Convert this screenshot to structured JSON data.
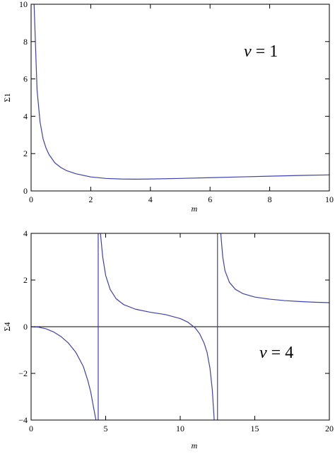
{
  "chart_data": [
    {
      "type": "line",
      "xlabel": "m",
      "ylabel": "Σ1",
      "xlim": [
        0,
        10
      ],
      "ylim": [
        0,
        10
      ],
      "xticks": [
        0,
        2,
        4,
        6,
        8,
        10
      ],
      "yticks": [
        0,
        2,
        4,
        6,
        8,
        10
      ],
      "annotation": "ν = 1",
      "series": [
        {
          "x": [
            0.1,
            0.2,
            0.3,
            0.4,
            0.5,
            0.6,
            0.8,
            1.0,
            1.2,
            1.5,
            2.0,
            2.5,
            3.0,
            3.5,
            4.0,
            5.0,
            6.0,
            7.0,
            8.0,
            9.0,
            10.0
          ],
          "y": [
            10.0,
            5.4,
            3.7,
            2.8,
            2.3,
            1.95,
            1.5,
            1.25,
            1.08,
            0.92,
            0.75,
            0.67,
            0.64,
            0.63,
            0.64,
            0.67,
            0.71,
            0.75,
            0.79,
            0.83,
            0.86
          ]
        }
      ]
    },
    {
      "type": "line",
      "xlabel": "m",
      "ylabel": "Σ4",
      "xlim": [
        0,
        20
      ],
      "ylim": [
        -4,
        4
      ],
      "xticks": [
        0,
        5,
        10,
        15,
        20
      ],
      "yticks": [
        -4,
        -2,
        0,
        2,
        4
      ],
      "annotation": "ν = 4",
      "asymptotes": [
        4.5,
        12.5
      ],
      "series": [
        {
          "x": [
            0,
            0.5,
            1.0,
            1.5,
            2.0,
            2.5,
            3.0,
            3.5,
            3.8,
            4.0,
            4.2,
            4.35
          ],
          "y": [
            0,
            -0.02,
            -0.09,
            -0.22,
            -0.42,
            -0.7,
            -1.1,
            -1.7,
            -2.3,
            -2.8,
            -3.5,
            -4.0
          ]
        },
        {
          "x": [
            4.65,
            4.8,
            5.0,
            5.3,
            5.7,
            6.2,
            7.0,
            8.0,
            9.0,
            10.0,
            10.5,
            11.0,
            11.3,
            11.6,
            11.8,
            12.0,
            12.15,
            12.28
          ],
          "y": [
            4.0,
            3.0,
            2.2,
            1.6,
            1.2,
            0.95,
            0.75,
            0.62,
            0.52,
            0.35,
            0.2,
            -0.05,
            -0.3,
            -0.7,
            -1.1,
            -1.8,
            -2.7,
            -4.0
          ]
        },
        {
          "x": [
            12.72,
            12.85,
            13.0,
            13.3,
            13.7,
            14.2,
            15.0,
            16.0,
            17.0,
            18.0,
            19.0,
            20.0
          ],
          "y": [
            4.0,
            3.0,
            2.4,
            1.9,
            1.6,
            1.42,
            1.27,
            1.18,
            1.12,
            1.08,
            1.05,
            1.03
          ]
        }
      ]
    }
  ],
  "colors": {
    "curve": "#4040b0",
    "frame": "#000000"
  }
}
